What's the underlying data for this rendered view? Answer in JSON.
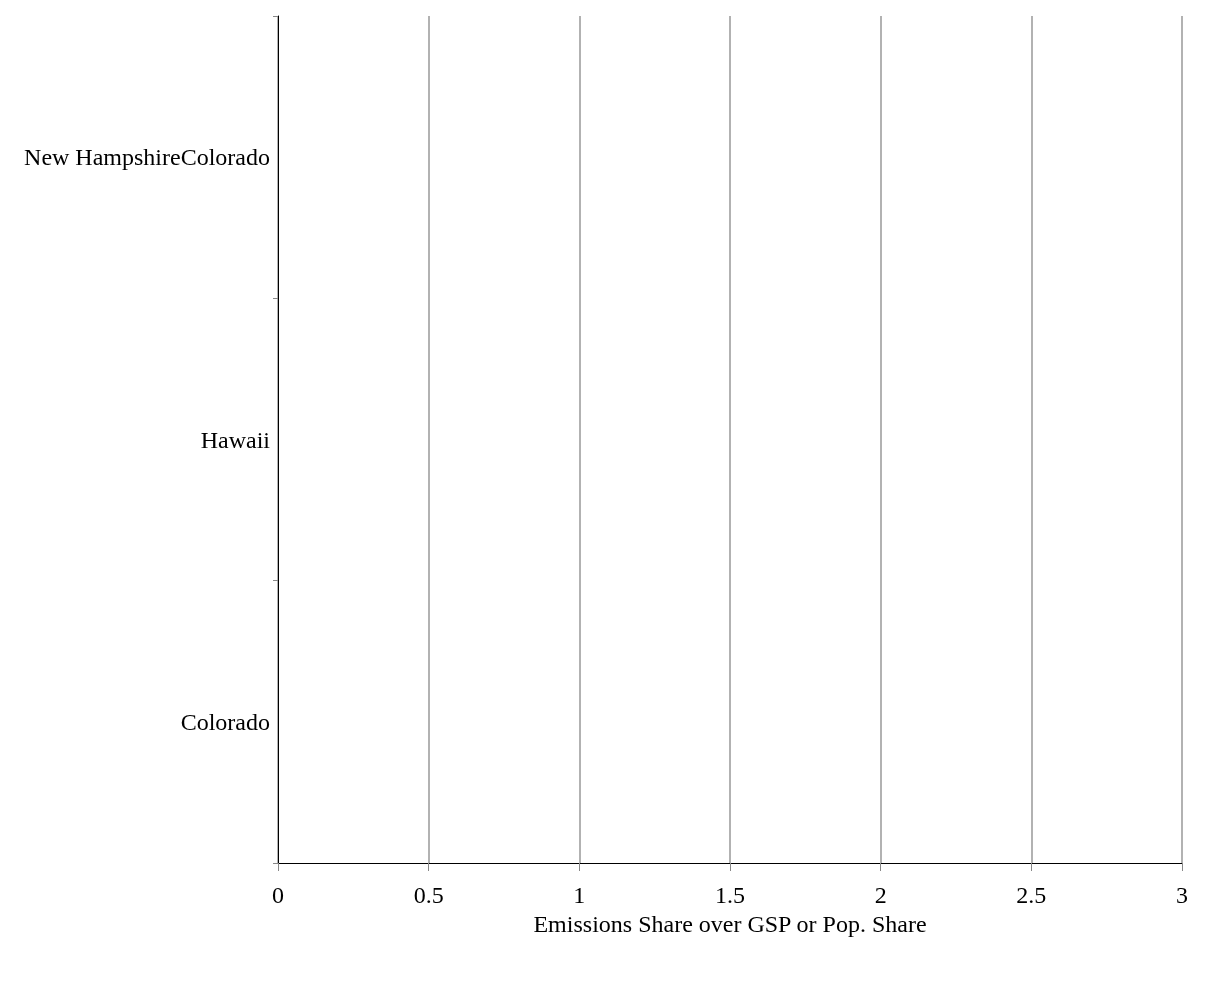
{
  "chart_data": {
    "type": "bar",
    "orientation": "horizontal",
    "categories": [
      "New HampshireColorado",
      "Hawaii",
      "Colorado"
    ],
    "values": [
      null,
      null,
      null
    ],
    "xlim": [
      0,
      3
    ],
    "xticks": [
      0,
      0.5,
      1,
      1.5,
      2,
      2.5,
      3
    ],
    "xlabel": "Emissions Share over GSP or Pop. Share",
    "grid": "x"
  }
}
